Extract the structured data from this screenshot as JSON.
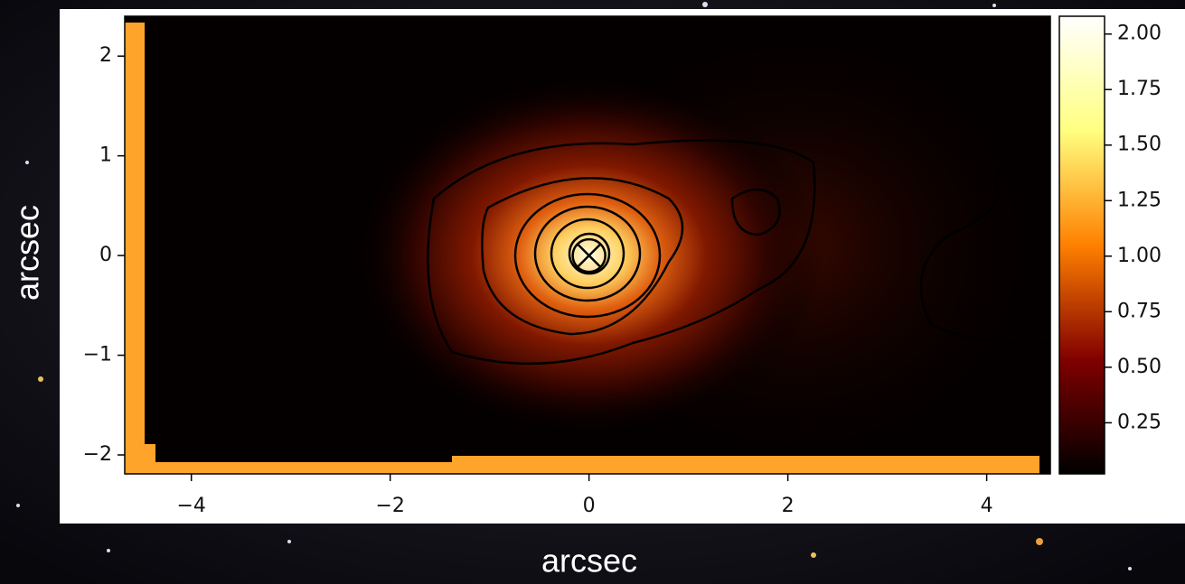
{
  "chart_data": {
    "type": "heatmap",
    "xlabel": "arcsec",
    "ylabel": "arcsec",
    "xlim": [
      -4.67,
      4.64
    ],
    "xticks": [
      {
        "value": -4,
        "label": "−4"
      },
      {
        "value": -2,
        "label": "−2"
      },
      0,
      2,
      4
    ],
    "ylim": [
      -2.19,
      2.4
    ],
    "yticks": [
      {
        "value": -2,
        "label": "−2"
      },
      {
        "value": -1,
        "label": "−1"
      },
      0,
      1,
      2
    ],
    "colormap": "afmhot",
    "clim": [
      0.02,
      2.08
    ],
    "cticks": [
      {
        "value": 0.25,
        "label": "0.25"
      },
      {
        "value": 0.5,
        "label": "0.50"
      },
      {
        "value": 0.75,
        "label": "0.75"
      },
      {
        "value": 1,
        "label": "1.00"
      },
      {
        "value": 1.25,
        "label": "1.25"
      },
      {
        "value": 1.5,
        "label": "1.50"
      },
      {
        "value": 1.75,
        "label": "1.75"
      },
      {
        "value": 2,
        "label": "2.00"
      }
    ],
    "marker": {
      "x": 0,
      "y": 0
    }
  }
}
